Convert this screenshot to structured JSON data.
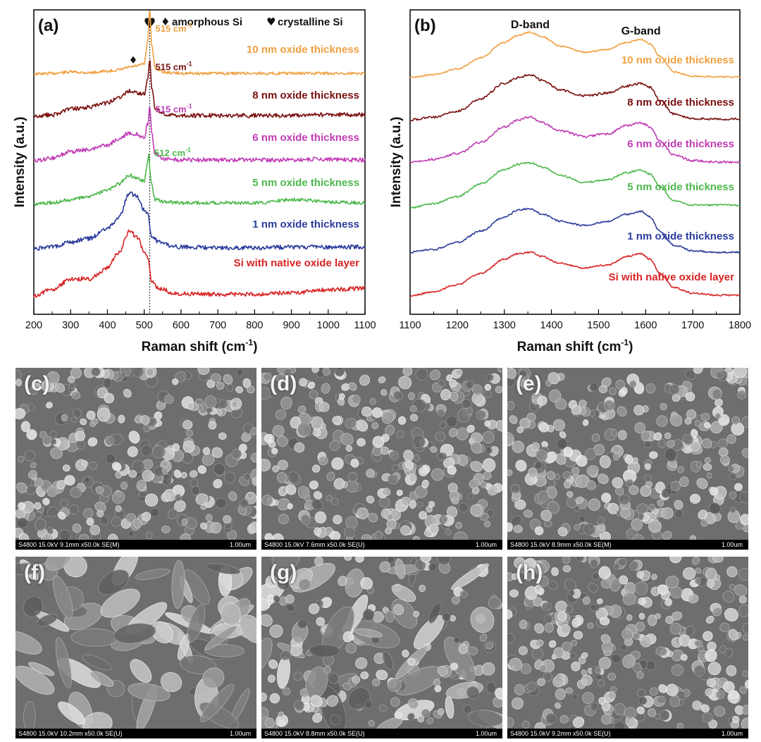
{
  "chart_data": [
    {
      "type": "line",
      "panel_label": "(a)",
      "xlabel": "Raman shift (cm",
      "xlabel_sup": "-1",
      "xlabel_end": ")",
      "ylabel": "Intensity (a.u.)",
      "xlim": [
        200,
        1100
      ],
      "xticks": [
        "200",
        "300",
        "400",
        "500",
        "600",
        "700",
        "800",
        "900",
        "1000",
        "1100"
      ],
      "legend": [
        {
          "symbol": "♦",
          "label": "amorphous Si"
        },
        {
          "symbol": "♥",
          "label": "crystalline Si"
        }
      ],
      "reference_line_x": 515,
      "series": [
        {
          "name": "10 nm oxide thickness",
          "color": "#f0a040",
          "peak_label": "515 cm",
          "peak_x": 515,
          "x": [
            200,
            250,
            300,
            350,
            400,
            430,
            460,
            480,
            500,
            510,
            515,
            520,
            530,
            560,
            600,
            700,
            800,
            900,
            1000,
            1100
          ],
          "y": [
            0.0,
            0.01,
            0.03,
            0.02,
            0.04,
            0.06,
            0.1,
            0.12,
            0.15,
            0.5,
            1.0,
            0.45,
            0.08,
            0.02,
            0.01,
            0.01,
            0.01,
            0.01,
            0.01,
            0.01
          ]
        },
        {
          "name": "8 nm oxide thickness",
          "color": "#7a1010",
          "peak_label": "515 cm",
          "peak_x": 515,
          "x": [
            200,
            250,
            300,
            350,
            400,
            430,
            460,
            480,
            500,
            510,
            515,
            520,
            530,
            560,
            600,
            700,
            800,
            900,
            1000,
            1100
          ],
          "y": [
            0.0,
            0.02,
            0.1,
            0.12,
            0.18,
            0.26,
            0.34,
            0.32,
            0.3,
            0.5,
            0.78,
            0.4,
            0.1,
            0.02,
            0.01,
            0.01,
            0.01,
            0.01,
            0.02,
            0.02
          ]
        },
        {
          "name": "6 nm oxide thickness",
          "color": "#c03cb4",
          "peak_label": "515 cm",
          "peak_x": 515,
          "x": [
            200,
            250,
            300,
            350,
            400,
            430,
            460,
            480,
            500,
            510,
            515,
            520,
            530,
            560,
            600,
            700,
            800,
            900,
            1000,
            1100
          ],
          "y": [
            0.0,
            0.03,
            0.12,
            0.14,
            0.2,
            0.28,
            0.36,
            0.34,
            0.3,
            0.48,
            0.72,
            0.38,
            0.08,
            0.02,
            0.01,
            0.01,
            0.01,
            0.01,
            0.02,
            0.01
          ]
        },
        {
          "name": "5 nm oxide thickness",
          "color": "#4cb84c",
          "peak_label": "512 cm",
          "peak_x": 512,
          "x": [
            200,
            250,
            300,
            350,
            400,
            430,
            460,
            480,
            500,
            508,
            512,
            518,
            530,
            560,
            600,
            700,
            800,
            900,
            950,
            1000,
            1100
          ],
          "y": [
            0.0,
            0.02,
            0.06,
            0.1,
            0.18,
            0.26,
            0.38,
            0.34,
            0.3,
            0.5,
            0.65,
            0.3,
            0.06,
            0.03,
            0.02,
            0.02,
            0.02,
            0.06,
            0.05,
            0.03,
            0.02
          ]
        },
        {
          "name": "1 nm oxide thickness",
          "color": "#2c3c9c",
          "x": [
            200,
            250,
            300,
            350,
            400,
            430,
            460,
            480,
            500,
            510,
            520,
            540,
            580,
            600,
            700,
            800,
            900,
            1000,
            1100
          ],
          "y": [
            0.0,
            0.02,
            0.08,
            0.12,
            0.24,
            0.36,
            0.66,
            0.62,
            0.46,
            0.4,
            0.14,
            0.08,
            0.03,
            0.02,
            0.01,
            0.01,
            0.02,
            0.02,
            0.02
          ]
        },
        {
          "name": "Si with native oxide layer",
          "color": "#d82424",
          "x": [
            200,
            250,
            300,
            350,
            400,
            430,
            460,
            480,
            500,
            510,
            520,
            540,
            580,
            600,
            700,
            800,
            900,
            1000,
            1100
          ],
          "y": [
            0.0,
            0.08,
            0.22,
            0.22,
            0.36,
            0.56,
            0.84,
            0.76,
            0.58,
            0.48,
            0.18,
            0.1,
            0.04,
            0.03,
            0.02,
            0.02,
            0.04,
            0.08,
            0.1
          ]
        }
      ]
    },
    {
      "type": "line",
      "panel_label": "(b)",
      "xlabel": "Raman shift (cm",
      "xlabel_sup": "-1",
      "xlabel_end": ")",
      "ylabel": "Intensity (a.u.)",
      "xlim": [
        1100,
        1800
      ],
      "xticks": [
        "1100",
        "1200",
        "1300",
        "1400",
        "1500",
        "1600",
        "1700",
        "1800"
      ],
      "band_labels": [
        {
          "label": "D-band",
          "x": 1355
        },
        {
          "label": "G-band",
          "x": 1590
        }
      ],
      "series": [
        {
          "name": "10 nm oxide thickness",
          "color": "#f0a040",
          "x": [
            1100,
            1150,
            1200,
            1250,
            1300,
            1330,
            1355,
            1380,
            1420,
            1470,
            1520,
            1560,
            1590,
            1610,
            1630,
            1660,
            1700,
            1750,
            1800
          ],
          "y": [
            0.0,
            0.04,
            0.12,
            0.28,
            0.5,
            0.6,
            0.64,
            0.58,
            0.44,
            0.36,
            0.4,
            0.5,
            0.54,
            0.48,
            0.3,
            0.08,
            0.02,
            0.01,
            0.01
          ]
        },
        {
          "name": "8 nm oxide thickness",
          "color": "#7a1010",
          "x": [
            1100,
            1150,
            1200,
            1250,
            1300,
            1330,
            1355,
            1380,
            1420,
            1470,
            1520,
            1560,
            1590,
            1610,
            1630,
            1660,
            1700,
            1750,
            1800
          ],
          "y": [
            0.0,
            0.04,
            0.12,
            0.3,
            0.52,
            0.6,
            0.64,
            0.56,
            0.42,
            0.34,
            0.38,
            0.48,
            0.52,
            0.46,
            0.28,
            0.08,
            0.02,
            0.01,
            0.01
          ]
        },
        {
          "name": "6 nm oxide thickness",
          "color": "#c03cb4",
          "x": [
            1100,
            1150,
            1200,
            1250,
            1300,
            1330,
            1355,
            1380,
            1420,
            1470,
            1520,
            1560,
            1590,
            1610,
            1630,
            1660,
            1700,
            1750,
            1800
          ],
          "y": [
            0.0,
            0.04,
            0.12,
            0.28,
            0.5,
            0.6,
            0.64,
            0.56,
            0.44,
            0.36,
            0.4,
            0.52,
            0.56,
            0.5,
            0.3,
            0.1,
            0.02,
            0.0,
            0.0
          ]
        },
        {
          "name": "5 nm oxide thickness",
          "color": "#4cb84c",
          "x": [
            1100,
            1150,
            1200,
            1250,
            1300,
            1330,
            1355,
            1380,
            1420,
            1470,
            1520,
            1560,
            1590,
            1610,
            1630,
            1660,
            1700,
            1750,
            1800
          ],
          "y": [
            0.0,
            0.06,
            0.16,
            0.34,
            0.54,
            0.62,
            0.64,
            0.58,
            0.46,
            0.36,
            0.4,
            0.5,
            0.54,
            0.48,
            0.3,
            0.1,
            0.04,
            0.04,
            0.04
          ]
        },
        {
          "name": "1 nm oxide thickness",
          "color": "#2c3c9c",
          "x": [
            1100,
            1150,
            1200,
            1250,
            1300,
            1330,
            1355,
            1380,
            1420,
            1470,
            1520,
            1560,
            1590,
            1610,
            1630,
            1660,
            1700,
            1750,
            1800
          ],
          "y": [
            0.0,
            0.04,
            0.14,
            0.3,
            0.5,
            0.6,
            0.62,
            0.54,
            0.44,
            0.38,
            0.44,
            0.54,
            0.58,
            0.5,
            0.3,
            0.1,
            0.02,
            0.0,
            0.0
          ]
        },
        {
          "name": "Si with native oxide layer",
          "color": "#d82424",
          "x": [
            1100,
            1150,
            1200,
            1250,
            1300,
            1330,
            1355,
            1380,
            1420,
            1470,
            1520,
            1560,
            1590,
            1610,
            1630,
            1660,
            1700,
            1750,
            1800
          ],
          "y": [
            0.0,
            0.06,
            0.16,
            0.32,
            0.52,
            0.6,
            0.62,
            0.56,
            0.46,
            0.4,
            0.44,
            0.56,
            0.6,
            0.52,
            0.32,
            0.12,
            0.04,
            0.01,
            0.01
          ]
        }
      ]
    }
  ],
  "sem_images": [
    {
      "label": "(c)",
      "info": "S4800 15.0kV 9.1mm x50.0k SE(M)",
      "scale": "1.00um",
      "texture": "particles"
    },
    {
      "label": "(d)",
      "info": "S4800 15.0kV 7.6mm x50.0k SE(U)",
      "scale": "1.00um",
      "texture": "particles"
    },
    {
      "label": "(e)",
      "info": "S4800 15.0kV 8.9mm x50.0k SE(M)",
      "scale": "1.00um",
      "texture": "particles"
    },
    {
      "label": "(f)",
      "info": "S4800 15.0kV 10.2mm x50.0k SE(U)",
      "scale": "1.00um",
      "texture": "flakes"
    },
    {
      "label": "(g)",
      "info": "S4800 15.0kV 8.8mm x50.0k SE(U)",
      "scale": "1.00um",
      "texture": "mixed"
    },
    {
      "label": "(h)",
      "info": "S4800 15.0kV 9.2mm x50.0k SE(U)",
      "scale": "1.00um",
      "texture": "particles"
    }
  ]
}
